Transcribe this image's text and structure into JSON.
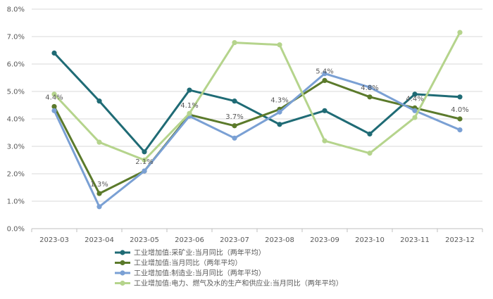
{
  "chart_data": {
    "type": "line",
    "categories": [
      "2023-03",
      "2023-04",
      "2023-05",
      "2023-06",
      "2023-07",
      "2023-08",
      "2023-09",
      "2023-10",
      "2023-11",
      "2023-12"
    ],
    "ylim": [
      0,
      8
    ],
    "yticks": [
      "0.0%",
      "1.0%",
      "2.0%",
      "3.0%",
      "4.0%",
      "5.0%",
      "6.0%",
      "7.0%",
      "8.0%"
    ],
    "grid": "horizontal",
    "legend_position": "bottom",
    "series": [
      {
        "name": "工业增加值:采矿业:当月同比（两年平均）",
        "color": "#1f6b75",
        "values": [
          6.4,
          4.65,
          2.8,
          5.05,
          4.65,
          3.8,
          4.3,
          3.45,
          4.9,
          4.8
        ]
      },
      {
        "name": "工业增加值:当月同比（两年平均）",
        "color": "#5b7a2b",
        "values": [
          4.45,
          1.28,
          2.1,
          4.15,
          3.75,
          4.35,
          5.4,
          4.8,
          4.4,
          4.0
        ]
      },
      {
        "name": "工业增加值:制造业:当月同比（两年平均）",
        "color": "#7aa0d4",
        "values": [
          4.3,
          0.8,
          2.1,
          4.1,
          3.3,
          4.25,
          5.65,
          5.15,
          4.3,
          3.6
        ]
      },
      {
        "name": "工业增加值:电力、燃气及水的生产和供应业:当月同比（两年平均）",
        "color": "#b5d48c",
        "values": [
          4.9,
          3.15,
          2.5,
          4.2,
          6.78,
          6.7,
          3.2,
          2.75,
          4.05,
          7.15
        ]
      }
    ],
    "data_labels": [
      "4.4%",
      "1.3%",
      "2.1%",
      "4.1%",
      "3.7%",
      "4.3%",
      "5.4%",
      "4.8%",
      "4.4%",
      "4.0%"
    ]
  }
}
